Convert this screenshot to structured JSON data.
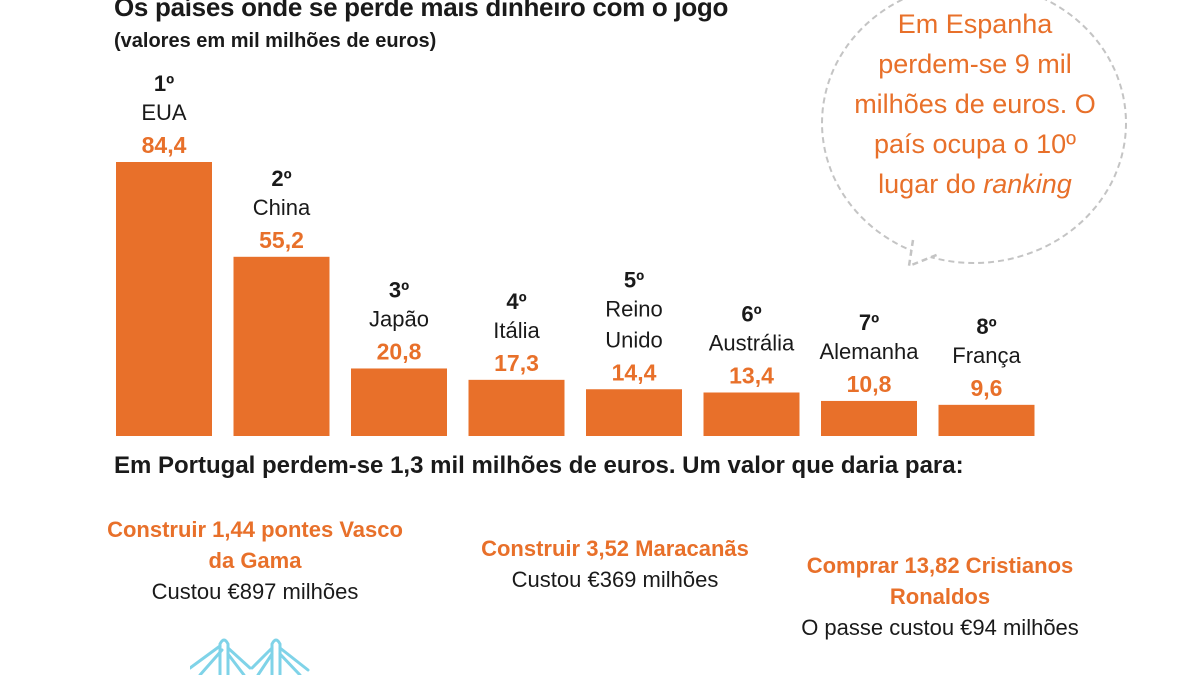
{
  "header": {
    "title": "Os países onde se perde mais dinheiro com o jogo",
    "subtitle": "(valores em mil milhões de euros)"
  },
  "callout": {
    "text": "Em Espanha perdem-se 9 mil milhões de euros. O país ocupa o 10º lugar do",
    "emphasis": "ranking"
  },
  "portugal_line": "Em Portugal perdem-se 1,3 mil milhões de euros. Um valor que daria para:",
  "comparisons": [
    {
      "title": "Construir 1,44 pontes Vasco da Gama",
      "description": "Custou €897 milhões"
    },
    {
      "title": "Construir 3,52 Maracanãs",
      "description": "Custou €369 milhões"
    },
    {
      "title": "Comprar 13,82 Cristianos Ronaldos",
      "description": "O passe custou €94 milhões"
    }
  ],
  "colors": {
    "accent": "#e8702a",
    "text": "#1a1a1a",
    "callout_border": "#c4c4c4",
    "icon": "#7fd3e8"
  },
  "icons": [
    "bridge-icon"
  ],
  "chart_data": {
    "type": "bar",
    "title": "Os países onde se perde mais dinheiro com o jogo",
    "subtitle": "(valores em mil milhões de euros)",
    "ranks": [
      "1º",
      "2º",
      "3º",
      "4º",
      "5º",
      "6º",
      "7º",
      "8º"
    ],
    "categories": [
      [
        "EUA"
      ],
      [
        "China"
      ],
      [
        "Japão"
      ],
      [
        "Itália"
      ],
      [
        "Reino",
        "Unido"
      ],
      [
        "Austrália"
      ],
      [
        "Alemanha"
      ],
      [
        "França"
      ]
    ],
    "values": [
      84.4,
      55.2,
      20.8,
      17.3,
      14.4,
      13.4,
      10.8,
      9.6
    ],
    "value_labels": [
      "84,4",
      "55,2",
      "20,8",
      "17,3",
      "14,4",
      "13,4",
      "10,8",
      "9,6"
    ],
    "ylim": [
      0,
      84.4
    ],
    "grid": false,
    "legend": "none"
  }
}
